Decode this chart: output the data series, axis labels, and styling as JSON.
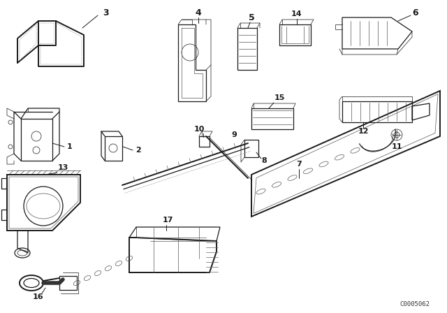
{
  "bg_color": "#ffffff",
  "line_color": "#1a1a1a",
  "label_color": "#111111",
  "watermark": "C0005062",
  "lw": 0.9,
  "lw_thin": 0.5,
  "lw_thick": 1.4
}
